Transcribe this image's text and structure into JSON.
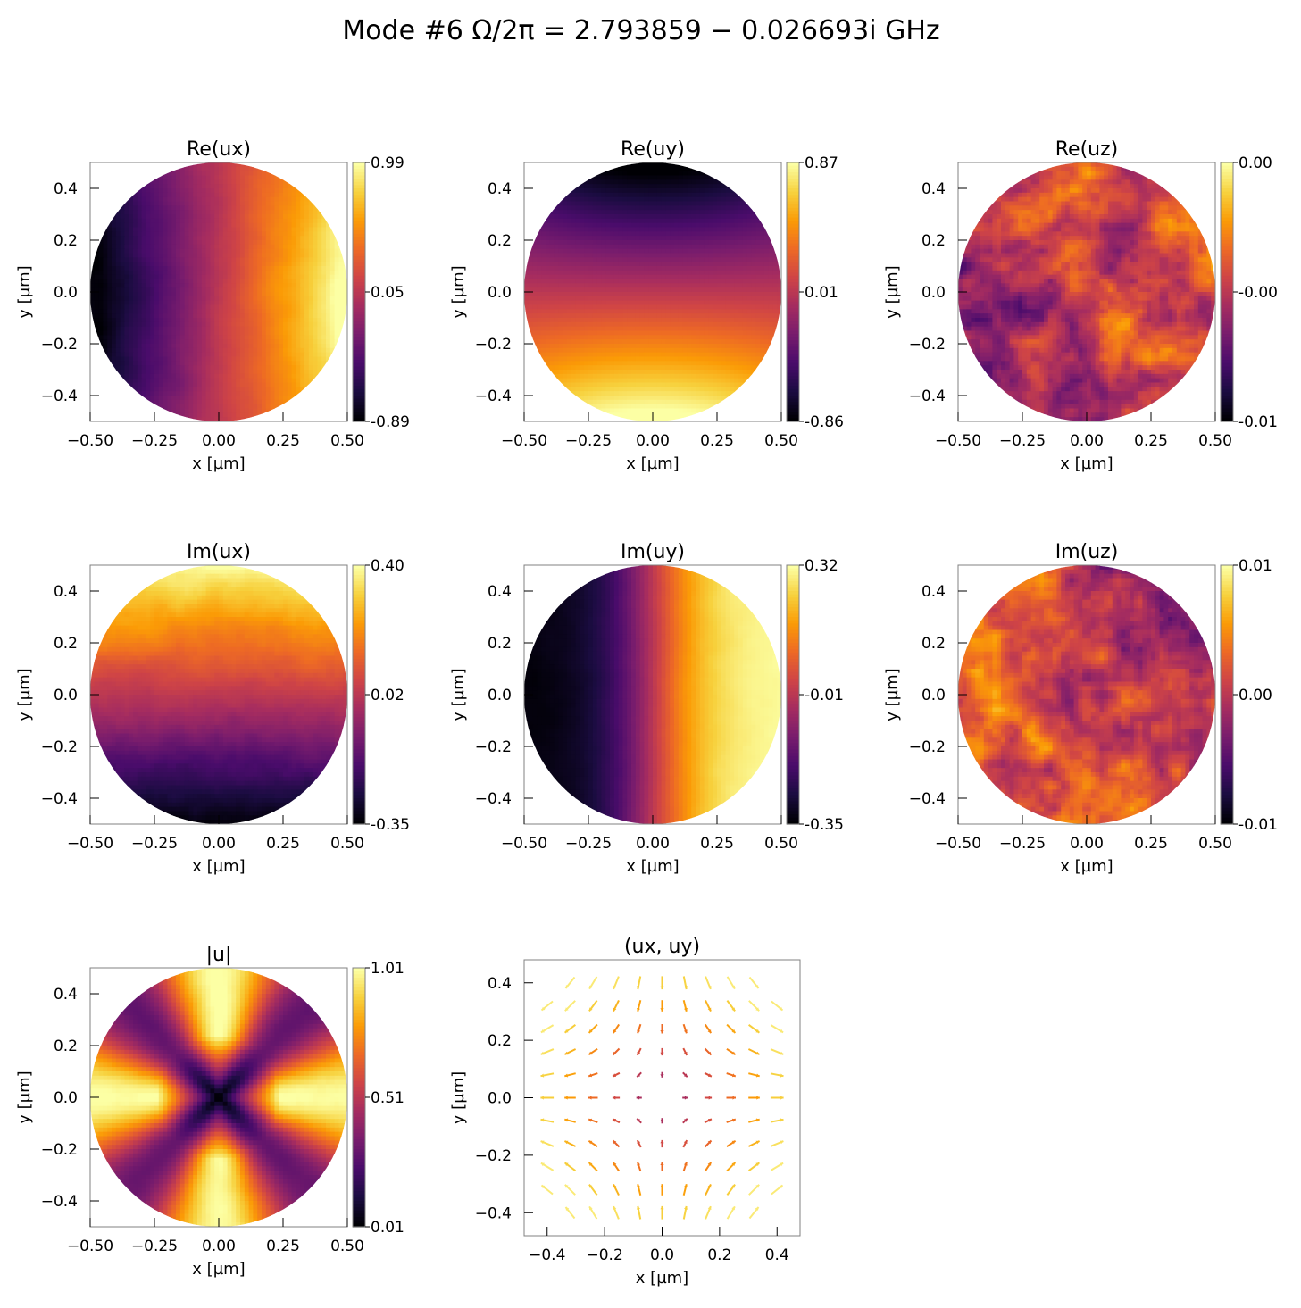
{
  "figure": {
    "title": "Mode #6   Ω/2π = 2.793859 − 0.026693i GHz"
  },
  "colors": {
    "colormap": "inferno",
    "inferno_stops": [
      "#000004",
      "#1b0c41",
      "#4a0c6b",
      "#781c6d",
      "#a52c60",
      "#cf4446",
      "#ed6925",
      "#fb9b06",
      "#f7d13d",
      "#fcffa4"
    ]
  },
  "chart_data": [
    {
      "type": "heatmap",
      "title": "Re(ux)",
      "xlabel": "x [µm]",
      "ylabel": "y [µm]",
      "xlim": [
        -0.5,
        0.5
      ],
      "ylim": [
        -0.5,
        0.5
      ],
      "xticks": [
        "−0.50",
        "−0.25",
        "0.00",
        "0.25",
        "0.50"
      ],
      "yticks": [
        "−0.4",
        "−0.2",
        "0.0",
        "0.2",
        "0.4"
      ],
      "domain": "disk of radius 0.5 µm",
      "colorbar": {
        "min": -0.89,
        "max": 0.99,
        "ticks": [
          "0.99",
          "0.05",
          "-0.89"
        ]
      },
      "pattern": "dipole along x: min near (-0.45, 0), max near (0.45, 0)",
      "noise": 0.04
    },
    {
      "type": "heatmap",
      "title": "Re(uy)",
      "xlabel": "x [µm]",
      "ylabel": "y [µm]",
      "xlim": [
        -0.5,
        0.5
      ],
      "ylim": [
        -0.5,
        0.5
      ],
      "xticks": [
        "−0.50",
        "−0.25",
        "0.00",
        "0.25",
        "0.50"
      ],
      "yticks": [
        "−0.4",
        "−0.2",
        "0.0",
        "0.2",
        "0.4"
      ],
      "domain": "disk of radius 0.5 µm",
      "colorbar": {
        "min": -0.86,
        "max": 0.87,
        "ticks": [
          "0.87",
          "0.01",
          "-0.86"
        ]
      },
      "pattern": "dipole along y: min near (0, 0.45), max near (0, -0.45)",
      "noise": 0.0
    },
    {
      "type": "heatmap",
      "title": "Re(uz)",
      "xlabel": "x [µm]",
      "ylabel": "y [µm]",
      "xlim": [
        -0.5,
        0.5
      ],
      "ylim": [
        -0.5,
        0.5
      ],
      "xticks": [
        "−0.50",
        "−0.25",
        "0.00",
        "0.25",
        "0.50"
      ],
      "yticks": [
        "−0.4",
        "−0.2",
        "0.0",
        "0.2",
        "0.4"
      ],
      "domain": "disk of radius 0.5 µm",
      "colorbar": {
        "min": -0.01,
        "max": 0.0,
        "ticks": [
          "0.00",
          "-0.00",
          "-0.01"
        ]
      },
      "pattern": "noisy field, darker toward left edge",
      "noise": 0.35
    },
    {
      "type": "heatmap",
      "title": "Im(ux)",
      "xlabel": "x [µm]",
      "ylabel": "y [µm]",
      "xlim": [
        -0.5,
        0.5
      ],
      "ylim": [
        -0.5,
        0.5
      ],
      "xticks": [
        "−0.50",
        "−0.25",
        "0.00",
        "0.25",
        "0.50"
      ],
      "yticks": [
        "−0.4",
        "−0.2",
        "0.0",
        "0.2",
        "0.4"
      ],
      "domain": "disk of radius 0.5 µm",
      "colorbar": {
        "min": -0.35,
        "max": 0.4,
        "ticks": [
          "0.40",
          "0.02",
          "-0.35"
        ]
      },
      "pattern": "gradient along y: high at top, low at bottom",
      "noise": 0.06
    },
    {
      "type": "heatmap",
      "title": "Im(uy)",
      "xlabel": "x [µm]",
      "ylabel": "y [µm]",
      "xlim": [
        -0.5,
        0.5
      ],
      "ylim": [
        -0.5,
        0.5
      ],
      "xticks": [
        "−0.50",
        "−0.25",
        "0.00",
        "0.25",
        "0.50"
      ],
      "yticks": [
        "−0.4",
        "−0.2",
        "0.0",
        "0.2",
        "0.4"
      ],
      "domain": "disk of radius 0.5 µm",
      "colorbar": {
        "min": -0.35,
        "max": 0.32,
        "ticks": [
          "0.32",
          "-0.01",
          "-0.35"
        ]
      },
      "pattern": "gradient along x: low on left, high on right",
      "noise": 0.02
    },
    {
      "type": "heatmap",
      "title": "Im(uz)",
      "xlabel": "x [µm]",
      "ylabel": "y [µm]",
      "xlim": [
        -0.5,
        0.5
      ],
      "ylim": [
        -0.5,
        0.5
      ],
      "xticks": [
        "−0.50",
        "−0.25",
        "0.00",
        "0.25",
        "0.50"
      ],
      "yticks": [
        "−0.4",
        "−0.2",
        "0.0",
        "0.2",
        "0.4"
      ],
      "domain": "disk of radius 0.5 µm",
      "colorbar": {
        "min": -0.01,
        "max": 0.01,
        "ticks": [
          "0.01",
          "0.00",
          "-0.01"
        ]
      },
      "pattern": "noisy field, brighter toward left edge",
      "noise": 0.35
    },
    {
      "type": "heatmap",
      "title": "|u|",
      "xlabel": "x [µm]",
      "ylabel": "y [µm]",
      "xlim": [
        -0.5,
        0.5
      ],
      "ylim": [
        -0.5,
        0.5
      ],
      "xticks": [
        "−0.50",
        "−0.25",
        "0.00",
        "0.25",
        "0.50"
      ],
      "yticks": [
        "−0.4",
        "−0.2",
        "0.0",
        "0.2",
        "0.4"
      ],
      "domain": "disk of radius 0.5 µm",
      "colorbar": {
        "min": 0.01,
        "max": 1.01,
        "ticks": [
          "1.01",
          "0.51",
          "0.01"
        ]
      },
      "pattern": "zero at center, four bright lobes at top, bottom, left, right",
      "noise": 0.03
    },
    {
      "type": "scatter",
      "subtype": "quiver",
      "title": "(ux, uy)",
      "xlabel": "x [µm]",
      "ylabel": "y [µm]",
      "xlim": [
        -0.48,
        0.48
      ],
      "ylim": [
        -0.48,
        0.48
      ],
      "xticks": [
        "−0.4",
        "−0.2",
        "0.0",
        "0.2",
        "0.4"
      ],
      "yticks": [
        "−0.4",
        "−0.2",
        "0.0",
        "0.2",
        "0.4"
      ],
      "grid_spacing": 0.08,
      "field": "u = (x, -y) saddle, arrow color ~ magnitude"
    }
  ]
}
